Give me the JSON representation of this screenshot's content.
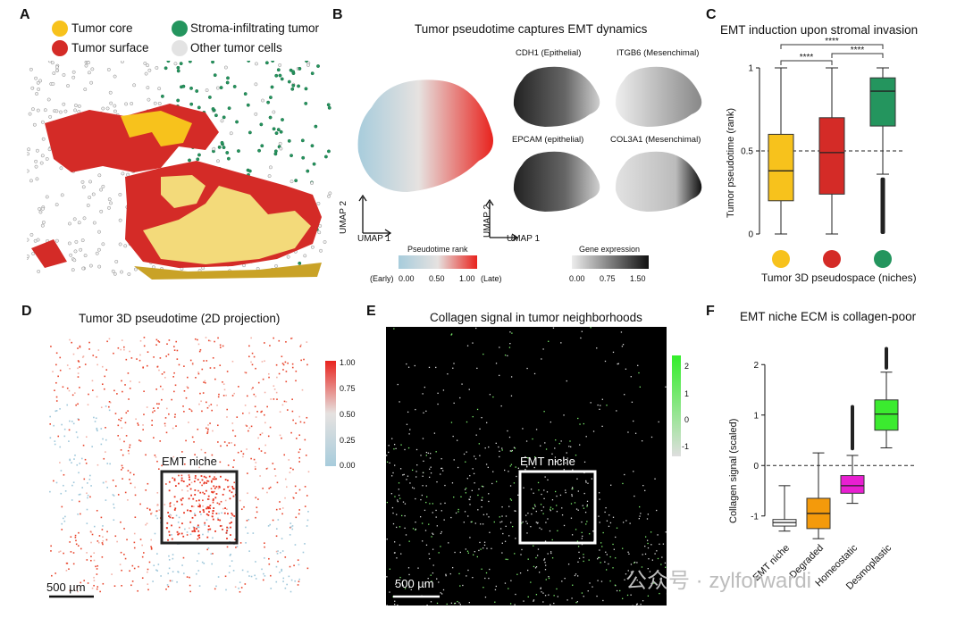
{
  "panels": {
    "A": {
      "letter": "A",
      "legend": [
        {
          "label": "Tumor core",
          "color": "#F7C21C"
        },
        {
          "label": "Tumor surface",
          "color": "#D42B27"
        },
        {
          "label": "Stroma-infiltrating tumor",
          "color": "#24955E"
        },
        {
          "label": "Other tumor cells",
          "color": "#E3E3E3"
        }
      ]
    },
    "B": {
      "letter": "B",
      "title": "Tumor pseudotime captures EMT dynamics",
      "genes": [
        "CDH1 (Epithelial)",
        "ITGB6 (Mesenchimal)",
        "EPCAM (epithelial)",
        "COL3A1 (Mesenchimal)"
      ],
      "axis_y": "UMAP 2",
      "axis_x": "UMAP 1",
      "pseudotime_legend": {
        "title": "Pseudotime rank",
        "left": "(Early)",
        "ticks": [
          "0.00",
          "0.50",
          "1.00"
        ],
        "right": "(Late)"
      },
      "expression_legend": {
        "title": "Gene expression",
        "ticks": [
          "0.00",
          "0.75",
          "1.50"
        ]
      }
    },
    "C": {
      "letter": "C",
      "title": "EMT induction upon stromal invasion",
      "ylabel": "Tumor pseudotime (rank)",
      "xlabel": "Tumor 3D pseudospace (niches)",
      "sig": [
        "****",
        "****",
        "****"
      ]
    },
    "D": {
      "letter": "D",
      "title": "Tumor 3D pseudotime (2D projection)",
      "colorbar_ticks": [
        "1.00",
        "0.75",
        "0.50",
        "0.25",
        "0.00"
      ],
      "niche_label": "EMT niche",
      "scalebar": "500 µm"
    },
    "E": {
      "letter": "E",
      "title": "Collagen signal in tumor neighborhoods",
      "colorbar_ticks": [
        "2",
        "1",
        "0",
        "-1"
      ],
      "niche_label": "EMT niche",
      "scalebar": "500 µm"
    },
    "F": {
      "letter": "F",
      "title": "EMT niche ECM is collagen-poor",
      "ylabel": "Collagen signal (scaled)"
    }
  },
  "watermark": "公众号 · zylforwardi",
  "chart_data": [
    {
      "type": "box",
      "id": "C",
      "title": "EMT induction upon stromal invasion",
      "ylabel": "Tumor pseudotime (rank)",
      "xlabel": "Tumor 3D pseudospace (niches)",
      "ylim": [
        0,
        1
      ],
      "yticks": [
        0,
        0.5,
        1
      ],
      "reference_line": 0.5,
      "categories": [
        "Tumor core",
        "Tumor surface",
        "Stroma-infiltrating tumor"
      ],
      "colors": [
        "#F7C21C",
        "#D42B27",
        "#24955E"
      ],
      "boxes": [
        {
          "min": 0.0,
          "q1": 0.2,
          "median": 0.38,
          "q3": 0.6,
          "max": 1.0
        },
        {
          "min": 0.0,
          "q1": 0.24,
          "median": 0.49,
          "q3": 0.7,
          "max": 1.0
        },
        {
          "min": 0.36,
          "q1": 0.65,
          "median": 0.86,
          "q3": 0.94,
          "max": 1.0,
          "outliers_low": [
            0.0,
            0.34
          ]
        }
      ],
      "significance": [
        "****",
        "****",
        "****"
      ]
    },
    {
      "type": "box",
      "id": "F",
      "title": "EMT niche ECM is collagen-poor",
      "ylabel": "Collagen signal (scaled)",
      "ylim": [
        -1.5,
        2.5
      ],
      "yticks": [
        -1,
        0,
        1,
        2
      ],
      "reference_line": 0,
      "categories": [
        "EMT niche",
        "Degraded",
        "Homeostatic",
        "Desmoplastic"
      ],
      "colors": [
        "#FFFFFF",
        "#F49A0B",
        "#E81FD1",
        "#3BEB2F"
      ],
      "boxes": [
        {
          "min": -1.3,
          "q1": -1.2,
          "median": -1.13,
          "q3": -1.07,
          "max": -0.4
        },
        {
          "min": -1.45,
          "q1": -1.25,
          "median": -0.95,
          "q3": -0.65,
          "max": 0.25
        },
        {
          "min": -0.75,
          "q1": -0.55,
          "median": -0.4,
          "q3": -0.2,
          "max": 0.2,
          "outliers_high": [
            0.3,
            1.2
          ]
        },
        {
          "min": 0.35,
          "q1": 0.7,
          "median": 1.02,
          "q3": 1.3,
          "max": 1.85,
          "outliers_high": [
            1.9,
            2.35
          ]
        }
      ]
    }
  ]
}
